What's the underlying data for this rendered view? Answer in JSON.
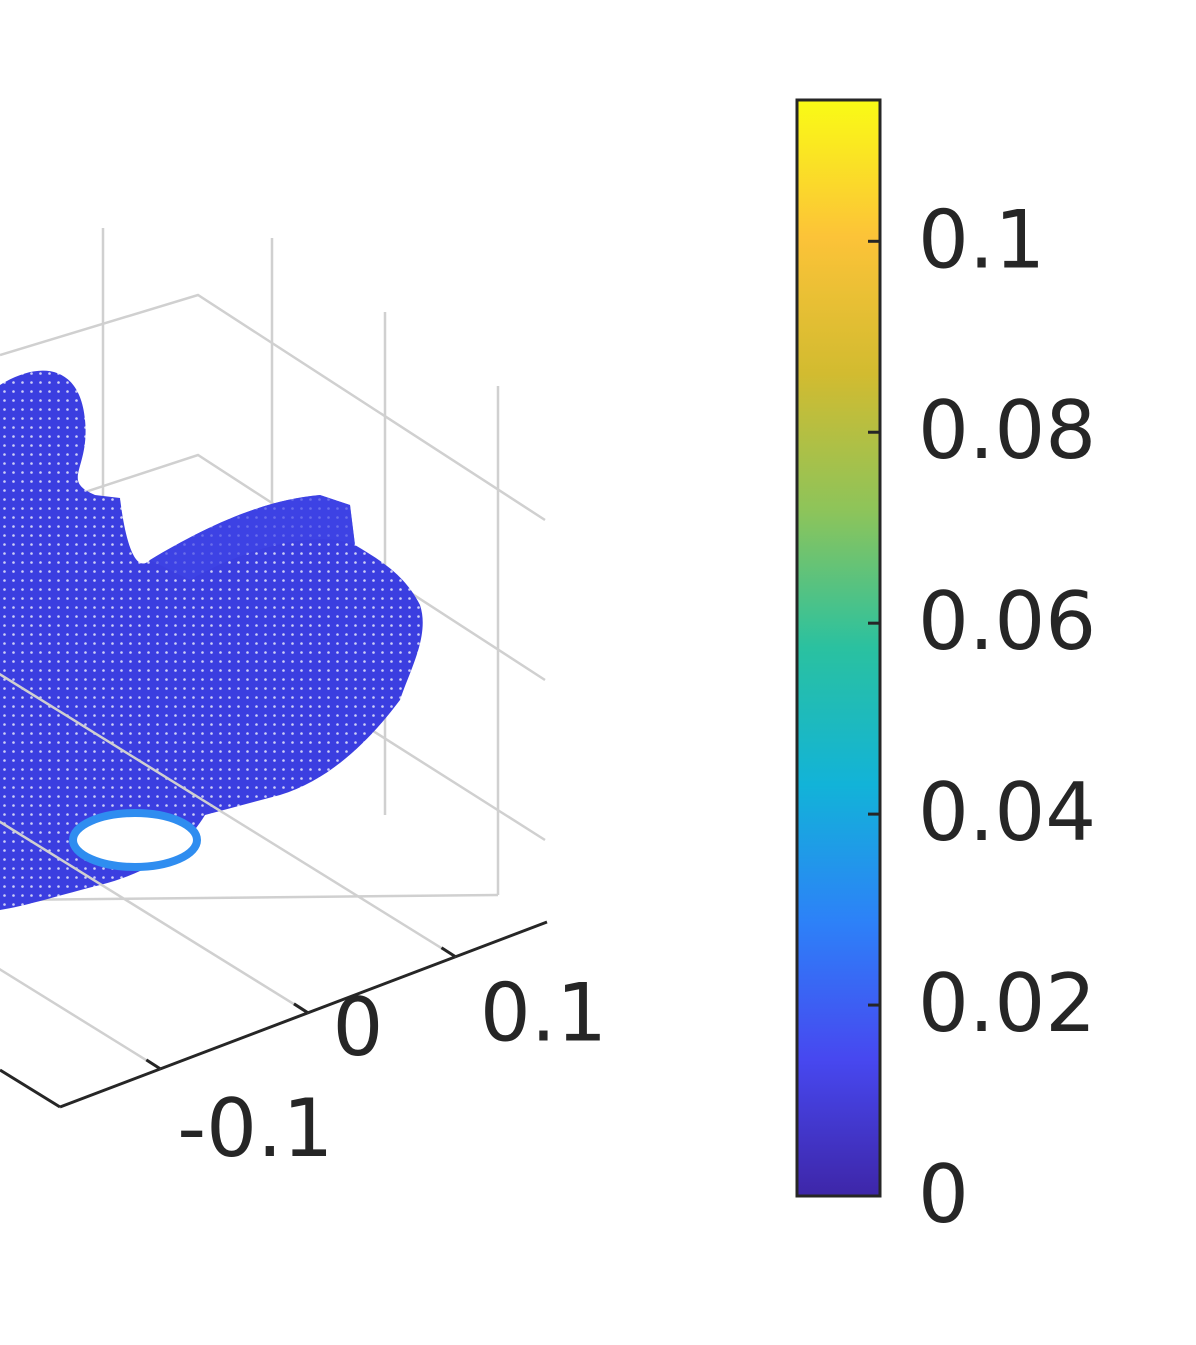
{
  "chart_data": {
    "type": "scatter3d",
    "xlim": [
      -0.168,
      0.162
    ],
    "xticks": [
      -0.1,
      0,
      0.1
    ],
    "grid": true,
    "colorbar": {
      "clim": [
        0,
        0.1148
      ],
      "ticks": [
        0,
        0.02,
        0.04,
        0.06,
        0.08,
        0.1
      ],
      "colormap": [
        "#3e26a8",
        "#4748f0",
        "#2d81f8",
        "#12b3d8",
        "#2ac1a0",
        "#8dc45a",
        "#d2bb30",
        "#fcc338",
        "#f9fb15"
      ]
    }
  }
}
